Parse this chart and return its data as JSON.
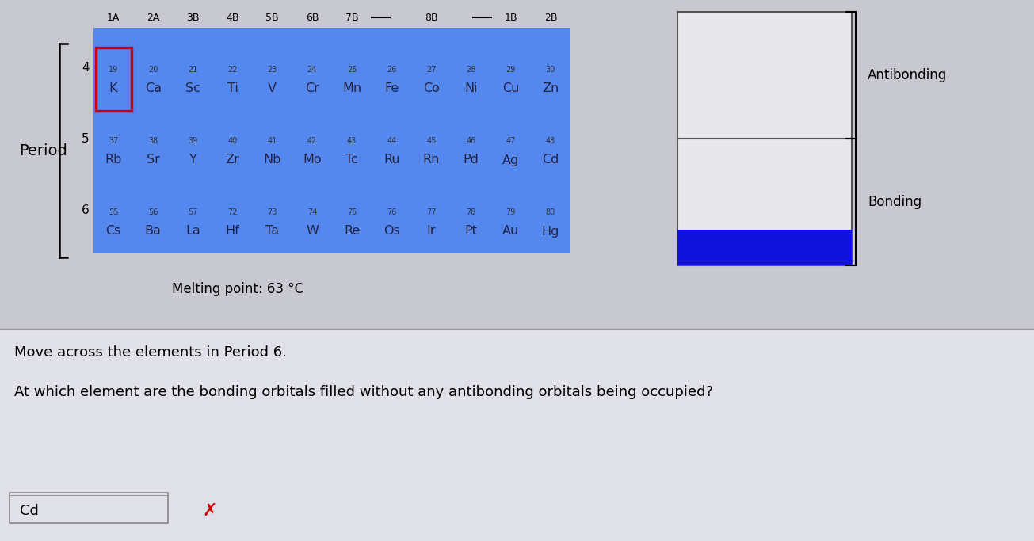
{
  "bg_color": "#c8c8d0",
  "table_bg": "#5588ee",
  "period_label": "Period",
  "period4_num": [
    "19",
    "20",
    "21",
    "22",
    "23",
    "24",
    "25",
    "26",
    "27",
    "28",
    "29",
    "30"
  ],
  "period4_sym": [
    "K",
    "Ca",
    "Sc",
    "Ti",
    "V",
    "Cr",
    "Mn",
    "Fe",
    "Co",
    "Ni",
    "Cu",
    "Zn"
  ],
  "period5_num": [
    "37",
    "38",
    "39",
    "40",
    "41",
    "42",
    "43",
    "44",
    "45",
    "46",
    "47",
    "48"
  ],
  "period5_sym": [
    "Rb",
    "Sr",
    "Y",
    "Zr",
    "Nb",
    "Mo",
    "Tc",
    "Ru",
    "Rh",
    "Pd",
    "Ag",
    "Cd"
  ],
  "period6_num": [
    "55",
    "56",
    "57",
    "72",
    "73",
    "74",
    "75",
    "76",
    "77",
    "78",
    "79",
    "80"
  ],
  "period6_sym": [
    "Cs",
    "Ba",
    "La",
    "Hf",
    "Ta",
    "W",
    "Re",
    "Os",
    "Ir",
    "Pt",
    "Au",
    "Hg"
  ],
  "melting_point_text": "Melting point: 63 °C",
  "highlighted_border": "#cc0000",
  "question_text1": "Move across the elements in Period 6.",
  "question_text2": "At which element are the bonding orbitals filled without any antibonding orbitals being occupied?",
  "answer_text": "Cd",
  "answer_x_color": "#cc0000",
  "antibonding_label": "Antibonding",
  "bonding_label": "Bonding",
  "blue_fill_color": "#1111dd",
  "box_border_color": "#555555",
  "white_fill": "#e8e8ec",
  "answer_box_bg": "#e0e0e8"
}
